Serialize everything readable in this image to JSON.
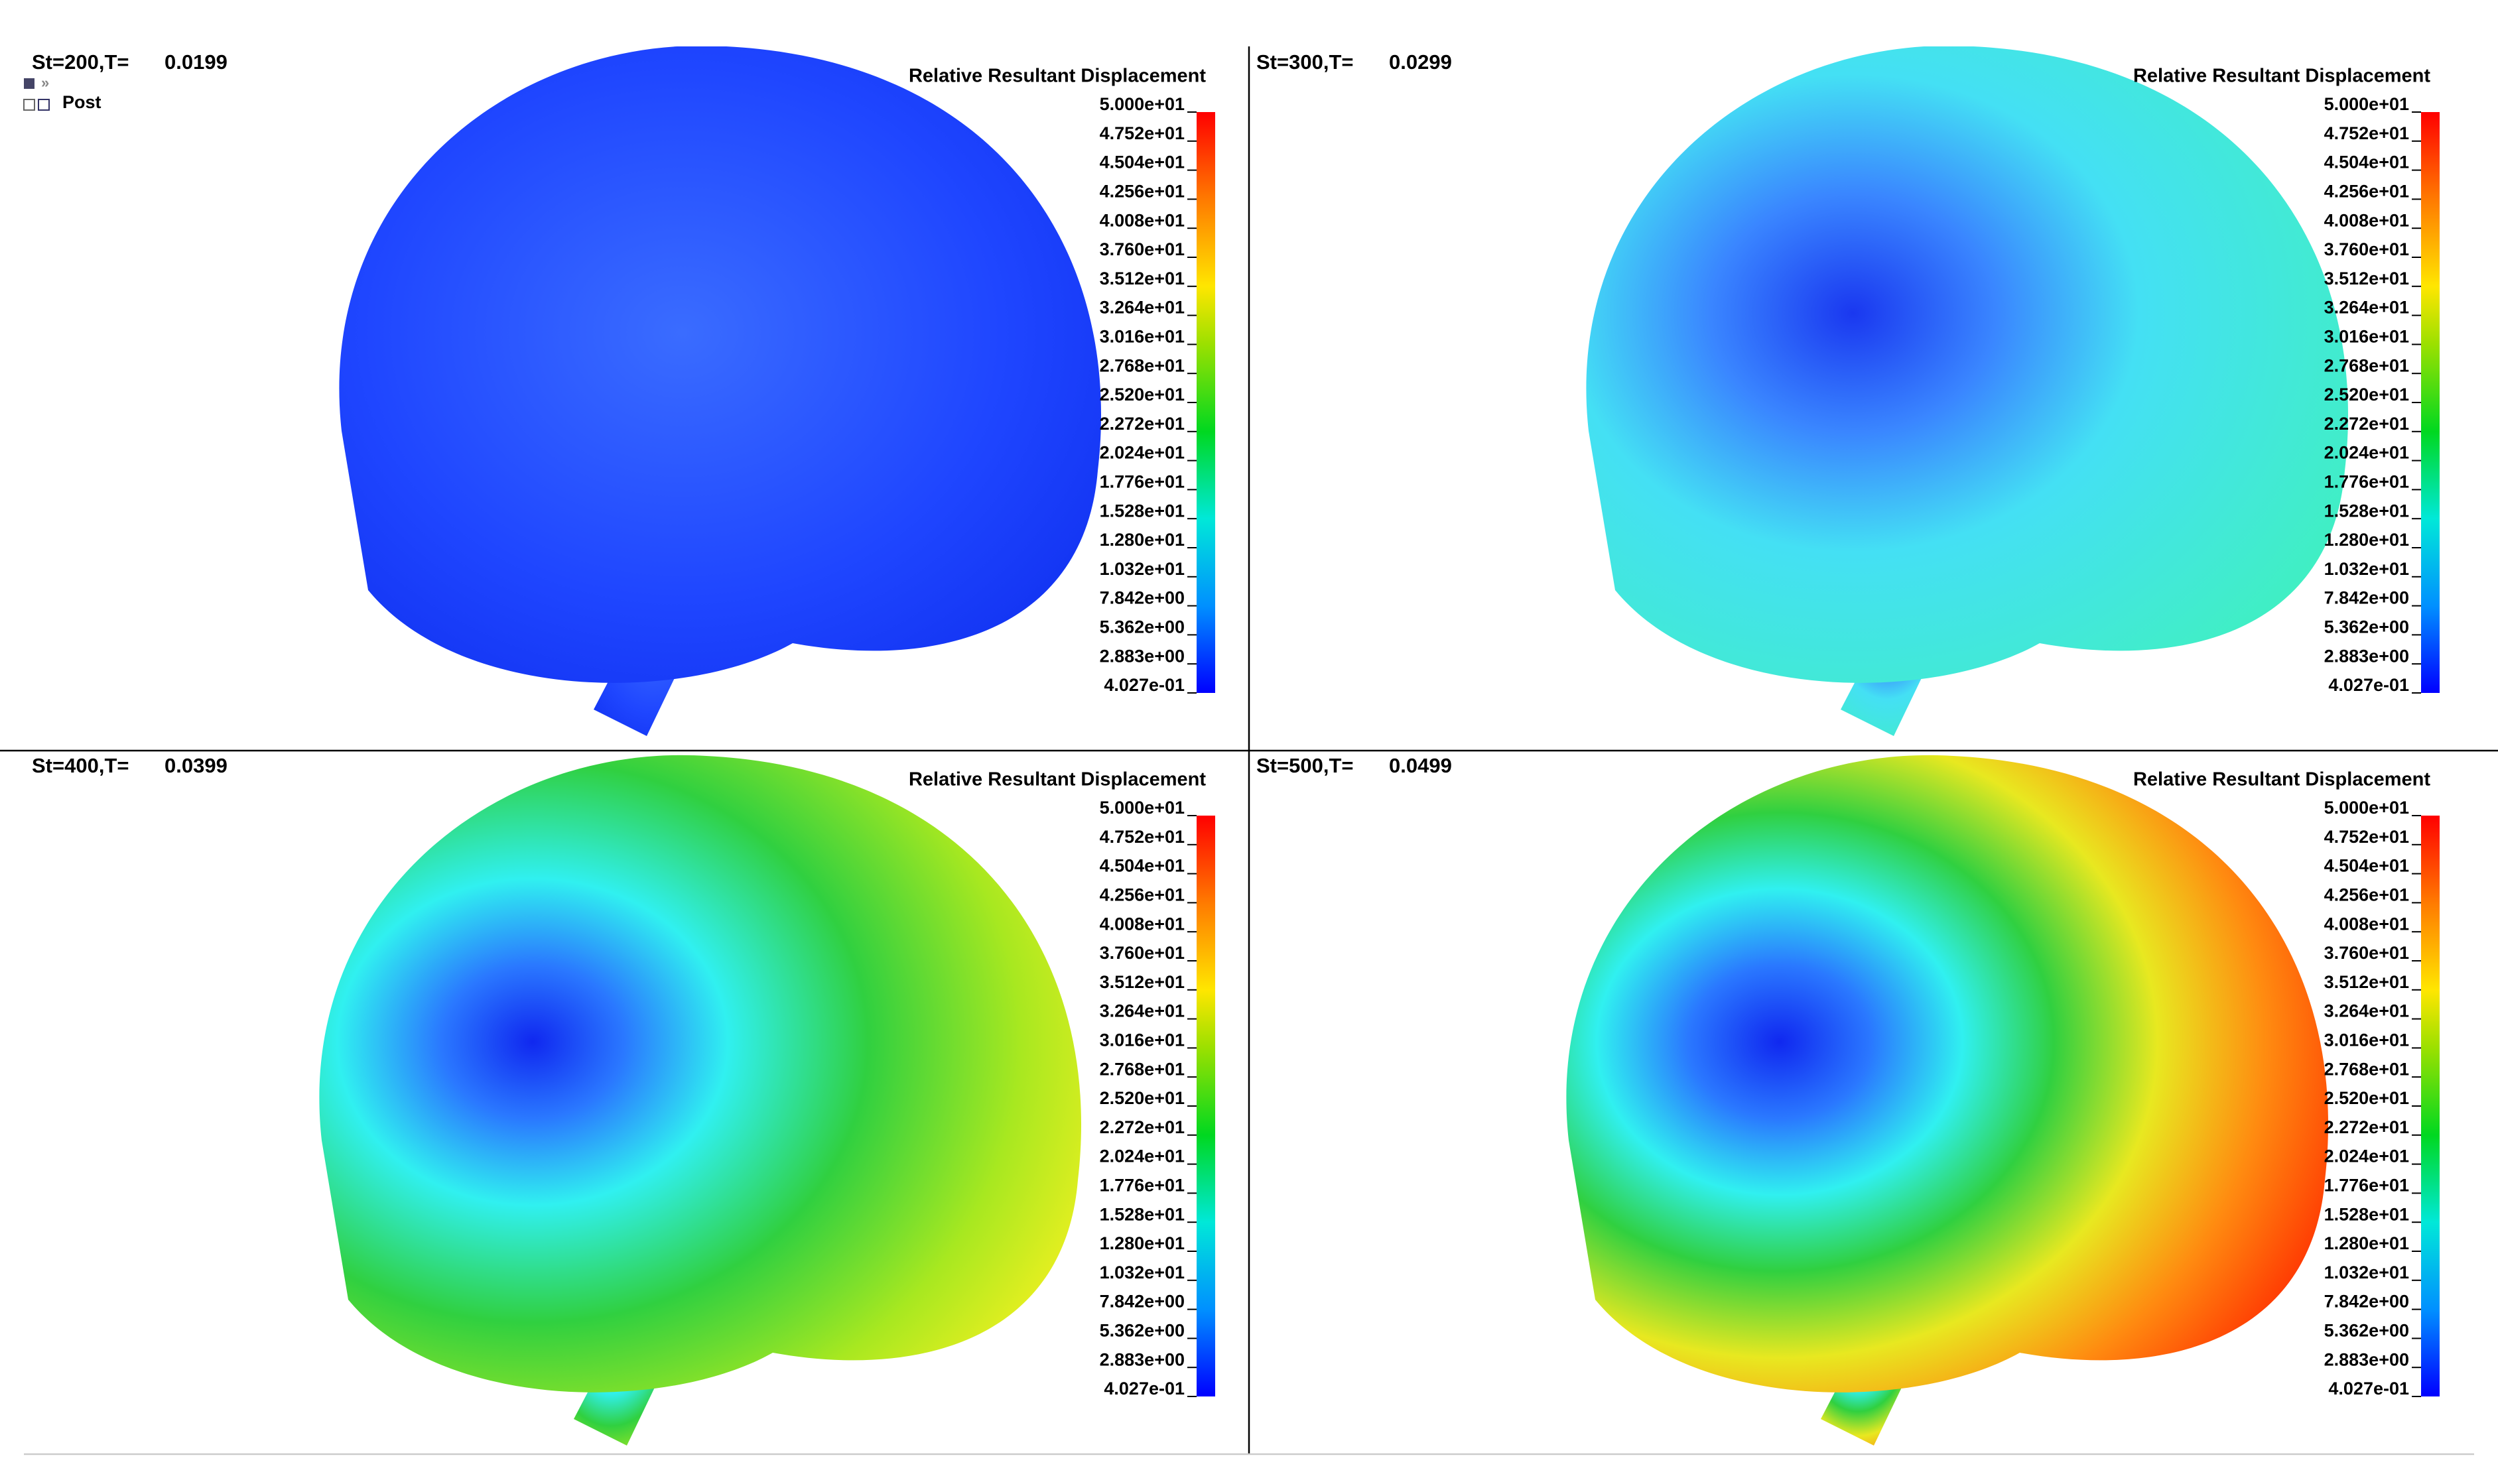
{
  "tree": {
    "item": "Post"
  },
  "legend": {
    "title": "Relative Resultant Displacement",
    "labels": [
      "5.000e+01",
      "4.752e+01",
      "4.504e+01",
      "4.256e+01",
      "4.008e+01",
      "3.760e+01",
      "3.512e+01",
      "3.264e+01",
      "3.016e+01",
      "2.768e+01",
      "2.520e+01",
      "2.272e+01",
      "2.024e+01",
      "1.776e+01",
      "1.528e+01",
      "1.280e+01",
      "1.032e+01",
      "7.842e+00",
      "5.362e+00",
      "2.883e+00",
      "4.027e-01"
    ]
  },
  "panels": [
    {
      "state": "St=200,T=",
      "time": "0.0199"
    },
    {
      "state": "St=300,T=",
      "time": "0.0299"
    },
    {
      "state": "St=400,T=",
      "time": "0.0399"
    },
    {
      "state": "St=500,T=",
      "time": "0.0499"
    }
  ]
}
